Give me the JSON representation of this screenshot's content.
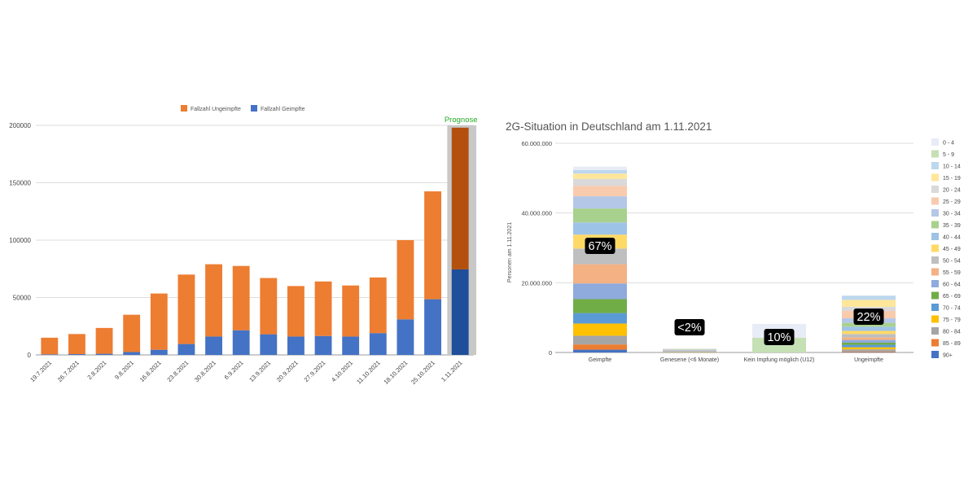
{
  "chart_data": [
    {
      "type": "bar",
      "stacked": true,
      "title": "",
      "xlabel": "",
      "ylabel": "",
      "ylim": [
        0,
        200000
      ],
      "yticks": [
        "0",
        "50000",
        "100000",
        "150000",
        "200000"
      ],
      "yticks_values": [
        0,
        50000,
        100000,
        150000,
        200000
      ],
      "categories": [
        "19.7.2021",
        "26.7.2021",
        "2.8.2021",
        "9.8.2021",
        "16.8.2021",
        "23.8.2021",
        "30.8.2021",
        "6.9.2021",
        "13.9.2021",
        "20.9.2021",
        "27.9.2021",
        "4.10.2021",
        "11.10.2021",
        "18.10.2021",
        "25.10.2021",
        "1.11.2021"
      ],
      "series": [
        {
          "name": "Fallzahl Geimpfte",
          "color": "#4472C4",
          "forecast_color": "#1F4E9A",
          "values": [
            500,
            700,
            1000,
            2500,
            4500,
            9500,
            16000,
            21500,
            18000,
            16000,
            16500,
            16000,
            19000,
            31000,
            48500,
            74500
          ]
        },
        {
          "name": "Fallzahl Ungeimpfte",
          "color": "#ED7D31",
          "forecast_color": "#B4500E",
          "values": [
            14500,
            17500,
            22500,
            32500,
            49000,
            60500,
            63000,
            56000,
            49000,
            44000,
            47500,
            44500,
            48500,
            69000,
            94000,
            123500
          ]
        }
      ],
      "legend": [
        "Fallzahl Ungeimpfte",
        "Fallzahl Geimpfte"
      ],
      "legend_position": "top",
      "forecast_label": "Prognose",
      "forecast_category": "1.11.2021",
      "forecast_color": "#22AA22"
    },
    {
      "type": "bar",
      "stacked": true,
      "title": "2G-Situation in Deutschland am 1.11.2021",
      "xlabel": "",
      "ylabel": "Personen am 1.11.2021",
      "ylim": [
        0,
        60000000
      ],
      "yticks": [
        "0",
        "20.000.000",
        "40.000.000",
        "60.000.000"
      ],
      "yticks_values": [
        0,
        20000000,
        40000000,
        60000000
      ],
      "categories": [
        "Geimpfte",
        "Genesene (<6 Monate)",
        "Kein Impfung möglich (U12)",
        "Ungeimpfte"
      ],
      "age_groups": [
        "0 - 4",
        "5 - 9",
        "10 - 14",
        "15 - 19",
        "20 - 24",
        "25 - 29",
        "30 - 34",
        "35 - 39",
        "40 - 44",
        "45 - 49",
        "50 - 54",
        "55 - 59",
        "60 - 64",
        "65 - 69",
        "70 - 74",
        "75 - 79",
        "80 - 84",
        "85 - 89",
        "90+"
      ],
      "age_colors": [
        "#E8ECF6",
        "#C5E0B4",
        "#BDD7EE",
        "#FFE699",
        "#D9D9D9",
        "#F8CBAD",
        "#B4C7E7",
        "#A9D18E",
        "#9DC3E6",
        "#FFD966",
        "#BFBFBF",
        "#F4B183",
        "#8FAADC",
        "#70AD47",
        "#5B9BD5",
        "#FFC000",
        "#A5A5A5",
        "#ED7D31",
        "#4472C4"
      ],
      "stacks_top_to_bottom": [
        [
          1000000,
          0,
          1000000,
          1500000,
          2000000,
          3000000,
          3500000,
          4000000,
          3500000,
          4000000,
          4500000,
          5500000,
          4500000,
          4000000,
          3000000,
          3500000,
          2500000,
          1500000,
          800000
        ],
        [
          150000,
          0,
          0,
          0,
          0,
          100000,
          100000,
          100000,
          100000,
          0,
          100000,
          100000,
          100000,
          0,
          100000,
          100000,
          100000,
          0,
          0
        ],
        [
          4000000,
          4200000,
          0,
          0,
          0,
          0,
          0,
          0,
          0,
          0,
          0,
          0,
          0,
          0,
          0,
          0,
          0,
          0,
          0
        ],
        [
          0,
          0,
          1200000,
          2000000,
          1200000,
          2100000,
          1300000,
          1100000,
          1200000,
          900000,
          1000000,
          700000,
          800000,
          600000,
          700000,
          600000,
          600000,
          200000,
          100000
        ]
      ],
      "percent_labels": [
        "67%",
        "<2%",
        "10%",
        "22%"
      ],
      "legend_position": "right"
    }
  ]
}
